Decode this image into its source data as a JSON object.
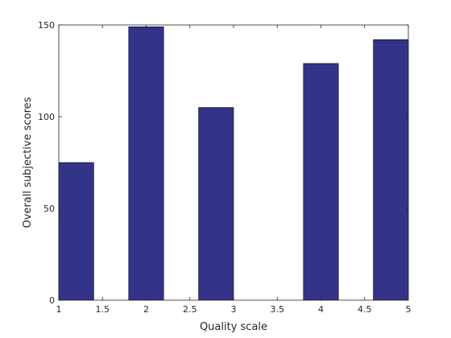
{
  "chart_data": {
    "type": "bar",
    "x": [
      1.2,
      2,
      2.8,
      4,
      4.8
    ],
    "values": [
      75,
      149,
      105,
      129,
      142
    ],
    "color": "#333388",
    "xlabel": "Quality scale",
    "ylabel": "Overall subjective scores",
    "xlim": [
      1,
      5
    ],
    "xticks": [
      1,
      1.5,
      2,
      2.5,
      3,
      3.5,
      4,
      4.5,
      5
    ],
    "ylim": [
      0,
      150
    ],
    "yticks": [
      0,
      50,
      100,
      150
    ],
    "grid": false
  }
}
